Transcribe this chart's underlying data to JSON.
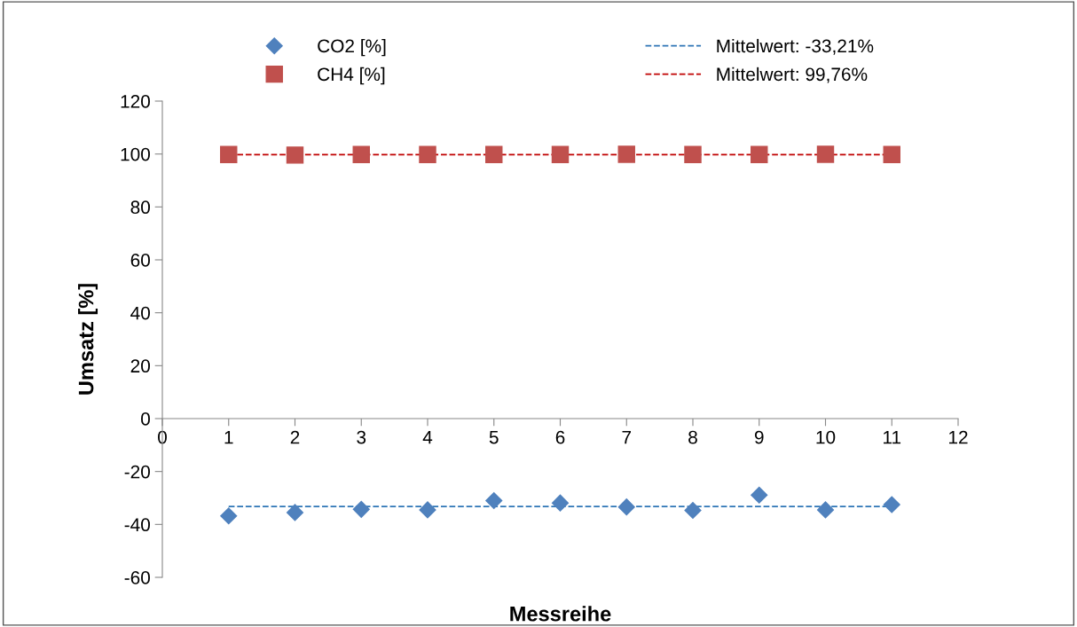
{
  "chart_data": {
    "type": "scatter",
    "xlabel": "Messreihe",
    "ylabel": "Umsatz [%]",
    "x": [
      1,
      2,
      3,
      4,
      5,
      6,
      7,
      8,
      9,
      10,
      11
    ],
    "series": [
      {
        "name": "CO2 [%]",
        "color": "#4f81bd",
        "marker": "diamond",
        "values": [
          -36.8,
          -35.5,
          -34.3,
          -34.5,
          -31.0,
          -31.9,
          -33.4,
          -34.7,
          -28.9,
          -34.5,
          -32.5
        ]
      },
      {
        "name": "CH4 [%]",
        "color": "#c0504d",
        "marker": "square",
        "values": [
          99.8,
          99.6,
          99.8,
          99.8,
          99.8,
          99.8,
          99.9,
          99.8,
          99.8,
          99.9,
          99.8
        ]
      },
      {
        "name": "Mittelwert: -33,21%",
        "type": "line",
        "line_style": "dashed",
        "marker": "none",
        "color": "#2e75b6",
        "values": [
          -33.21,
          -33.21,
          -33.21,
          -33.21,
          -33.21,
          -33.21,
          -33.21,
          -33.21,
          -33.21,
          -33.21,
          -33.21
        ]
      },
      {
        "name": "Mittelwert: 99,76%",
        "type": "line",
        "line_style": "dashed",
        "marker": "none",
        "color": "#c00000",
        "values": [
          99.76,
          99.76,
          99.76,
          99.76,
          99.76,
          99.76,
          99.76,
          99.76,
          99.76,
          99.76,
          99.76
        ]
      }
    ],
    "xlim": [
      0,
      12
    ],
    "xticks": [
      0,
      1,
      2,
      3,
      4,
      5,
      6,
      7,
      8,
      9,
      10,
      11,
      12
    ],
    "ylim": [
      -60,
      120
    ],
    "yticks": [
      -60,
      -40,
      -20,
      0,
      20,
      40,
      60,
      80,
      100,
      120
    ],
    "grid": false,
    "legend": "top"
  }
}
